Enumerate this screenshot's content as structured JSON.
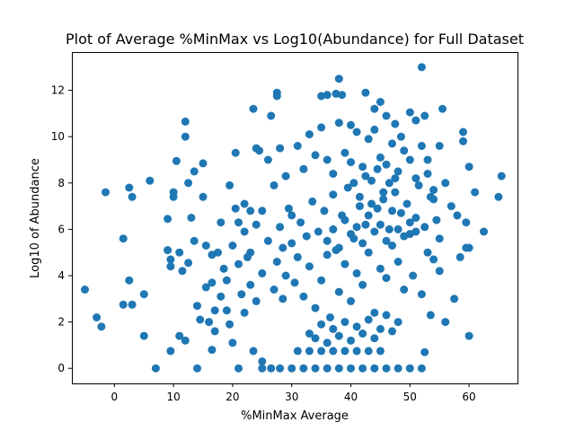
{
  "chart_data": {
    "type": "scatter",
    "title": "Plot of Average %MinMax vs Log10(Abundance) for Full Dataset",
    "xlabel": "%MinMax Average",
    "ylabel": "Log10 of Abundance",
    "xlim": [
      -7.2,
      68.2
    ],
    "ylim": [
      -0.65,
      13.65
    ],
    "xticks": [
      0,
      10,
      20,
      30,
      40,
      50,
      60
    ],
    "yticks": [
      0,
      2,
      4,
      6,
      8,
      10,
      12
    ],
    "grid": false,
    "color": "#1f77b4",
    "points": [
      [
        -5,
        3.4
      ],
      [
        -3,
        2.2
      ],
      [
        -2.2,
        1.8
      ],
      [
        -1.5,
        7.6
      ],
      [
        1.5,
        5.6
      ],
      [
        2.5,
        7.8
      ],
      [
        2.5,
        3.8
      ],
      [
        3,
        7.4
      ],
      [
        1.5,
        2.75
      ],
      [
        3,
        2.75
      ],
      [
        5,
        3.2
      ],
      [
        5,
        1.4
      ],
      [
        6,
        8.1
      ],
      [
        7,
        0.0
      ],
      [
        9,
        6.45
      ],
      [
        9,
        5.1
      ],
      [
        9.5,
        4.7
      ],
      [
        9.5,
        4.4
      ],
      [
        10,
        7.6
      ],
      [
        10,
        7.4
      ],
      [
        10.5,
        8.95
      ],
      [
        11,
        5.0
      ],
      [
        11,
        1.4
      ],
      [
        11.5,
        4.2
      ],
      [
        12,
        10.65
      ],
      [
        12,
        10.0
      ],
      [
        12.5,
        8.0
      ],
      [
        12.5,
        4.55
      ],
      [
        13,
        6.5
      ],
      [
        13.5,
        8.5
      ],
      [
        13.5,
        5.5
      ],
      [
        14,
        2.7
      ],
      [
        14,
        0.0
      ],
      [
        15,
        8.85
      ],
      [
        15,
        7.4
      ],
      [
        15.5,
        5.3
      ],
      [
        16,
        2.0
      ],
      [
        16.5,
        3.7
      ],
      [
        17,
        1.6
      ],
      [
        18,
        6.3
      ],
      [
        9.5,
        0.75
      ],
      [
        12,
        1.2
      ],
      [
        14.5,
        2.1
      ],
      [
        16.5,
        0.8
      ],
      [
        19,
        2.5
      ],
      [
        20,
        1.1
      ],
      [
        20.5,
        9.3
      ],
      [
        21,
        0.0
      ],
      [
        22,
        5.9
      ],
      [
        23,
        6.8
      ],
      [
        23.5,
        11.2
      ],
      [
        24,
        9.5
      ],
      [
        24.5,
        9.4
      ],
      [
        25,
        6.8
      ],
      [
        25,
        0.3
      ],
      [
        26,
        9.0
      ],
      [
        26.5,
        10.9
      ],
      [
        27,
        7.9
      ],
      [
        27.5,
        11.9
      ],
      [
        27.5,
        11.75
      ],
      [
        28,
        9.5
      ],
      [
        28.5,
        3.0
      ],
      [
        29,
        8.3
      ],
      [
        30,
        6.6
      ],
      [
        23.5,
        0.75
      ],
      [
        25,
        0.0
      ],
      [
        26.5,
        0.0
      ],
      [
        28,
        0.0
      ],
      [
        30,
        0.0
      ],
      [
        32,
        0.0
      ],
      [
        34,
        0.0
      ],
      [
        36,
        0.0
      ],
      [
        38,
        0.0
      ],
      [
        40,
        0.0
      ],
      [
        42,
        0.0
      ],
      [
        44,
        0.0
      ],
      [
        46,
        0.0
      ],
      [
        48,
        0.0
      ],
      [
        50,
        0.0
      ],
      [
        52,
        0.0
      ],
      [
        31,
        0.75
      ],
      [
        33,
        0.75
      ],
      [
        35,
        0.75
      ],
      [
        37,
        0.75
      ],
      [
        39,
        0.75
      ],
      [
        41,
        0.75
      ],
      [
        43,
        0.75
      ],
      [
        45,
        0.75
      ],
      [
        35,
        11.75
      ],
      [
        36,
        11.8
      ],
      [
        37.5,
        11.85
      ],
      [
        38,
        12.5
      ],
      [
        38.5,
        11.8
      ],
      [
        40,
        10.5
      ],
      [
        42.5,
        11.9
      ],
      [
        44,
        11.2
      ],
      [
        45,
        11.5
      ],
      [
        46,
        10.9
      ],
      [
        47.5,
        10.55
      ],
      [
        48.5,
        10.0
      ],
      [
        50,
        11.05
      ],
      [
        51,
        10.7
      ],
      [
        52,
        13.0
      ],
      [
        52.5,
        10.9
      ],
      [
        53,
        9.0
      ],
      [
        54,
        7.7
      ],
      [
        55,
        9.6
      ],
      [
        55.5,
        11.2
      ],
      [
        56,
        8.0
      ],
      [
        57,
        7.0
      ],
      [
        58,
        6.6
      ],
      [
        58.5,
        4.8
      ],
      [
        59,
        10.2
      ],
      [
        59,
        9.8
      ],
      [
        59.5,
        6.3
      ],
      [
        60,
        8.7
      ],
      [
        60,
        5.2
      ],
      [
        60,
        1.4
      ],
      [
        61,
        7.6
      ],
      [
        62.5,
        5.9
      ],
      [
        65,
        7.4
      ],
      [
        65.5,
        8.3
      ],
      [
        59.5,
        5.2
      ],
      [
        57.5,
        3.0
      ],
      [
        56,
        2.0
      ],
      [
        55,
        4.2
      ],
      [
        53.5,
        2.3
      ],
      [
        52.5,
        0.7
      ],
      [
        31,
        9.6
      ],
      [
        32,
        8.6
      ],
      [
        33,
        10.1
      ],
      [
        34,
        9.2
      ],
      [
        35,
        10.4
      ],
      [
        36,
        9.0
      ],
      [
        37,
        8.4
      ],
      [
        38,
        10.6
      ],
      [
        39,
        9.3
      ],
      [
        40,
        8.9
      ],
      [
        41,
        10.2
      ],
      [
        42,
        8.7
      ],
      [
        43,
        9.9
      ],
      [
        44,
        10.3
      ],
      [
        45,
        9.1
      ],
      [
        46,
        8.8
      ],
      [
        47,
        9.7
      ],
      [
        48,
        8.5
      ],
      [
        49,
        9.4
      ],
      [
        50,
        9.0
      ],
      [
        51,
        8.2
      ],
      [
        52,
        9.6
      ],
      [
        53,
        8.4
      ],
      [
        54,
        7.3
      ],
      [
        19.5,
        7.9
      ],
      [
        20.5,
        6.9
      ],
      [
        21,
        4.5
      ],
      [
        21.5,
        3.2
      ],
      [
        22,
        2.4
      ],
      [
        22.5,
        4.8
      ],
      [
        23,
        3.6
      ],
      [
        24,
        2.9
      ],
      [
        20,
        5.3
      ],
      [
        21,
        6.3
      ],
      [
        22,
        7.1
      ],
      [
        23,
        5.0
      ],
      [
        24,
        6.2
      ],
      [
        25,
        4.1
      ],
      [
        26,
        5.5
      ],
      [
        27,
        3.4
      ],
      [
        18,
        3.1
      ],
      [
        18.5,
        4.3
      ],
      [
        19,
        3.8
      ],
      [
        17.5,
        5.0
      ],
      [
        16.5,
        4.9
      ],
      [
        15.5,
        3.5
      ],
      [
        17,
        2.5
      ],
      [
        19.5,
        1.9
      ],
      [
        27.5,
        4.6
      ],
      [
        28,
        6.1
      ],
      [
        28.5,
        5.2
      ],
      [
        29,
        4.0
      ],
      [
        29.5,
        6.9
      ],
      [
        30,
        5.4
      ],
      [
        30.5,
        3.7
      ],
      [
        31,
        4.8
      ],
      [
        31.5,
        6.3
      ],
      [
        32,
        3.1
      ],
      [
        32.5,
        5.7
      ],
      [
        33,
        4.4
      ],
      [
        33.5,
        7.2
      ],
      [
        34,
        2.6
      ],
      [
        34.5,
        5.9
      ],
      [
        35,
        3.8
      ],
      [
        35.5,
        6.8
      ],
      [
        36,
        4.9
      ],
      [
        36.5,
        2.2
      ],
      [
        37,
        7.5
      ],
      [
        37.5,
        5.1
      ],
      [
        38,
        3.3
      ],
      [
        38.5,
        6.6
      ],
      [
        39,
        4.5
      ],
      [
        39.5,
        7.8
      ],
      [
        40,
        2.9
      ],
      [
        40.5,
        5.6
      ],
      [
        41,
        4.1
      ],
      [
        41.5,
        7.0
      ],
      [
        42,
        3.6
      ],
      [
        42.5,
        6.2
      ],
      [
        43,
        5.0
      ],
      [
        43.5,
        8.1
      ],
      [
        44,
        2.4
      ],
      [
        44.5,
        6.9
      ],
      [
        45,
        4.3
      ],
      [
        45.5,
        7.6
      ],
      [
        46,
        3.9
      ],
      [
        46.5,
        6.0
      ],
      [
        47,
        5.3
      ],
      [
        47.5,
        8.2
      ],
      [
        48,
        4.6
      ],
      [
        48.5,
        6.7
      ],
      [
        49,
        3.4
      ],
      [
        49.5,
        7.1
      ],
      [
        50,
        5.8
      ],
      [
        50.5,
        4.0
      ],
      [
        51,
        6.5
      ],
      [
        51.5,
        7.9
      ],
      [
        52,
        3.2
      ],
      [
        52.5,
        6.1
      ],
      [
        53,
        5.0
      ],
      [
        53.5,
        7.4
      ],
      [
        54,
        4.7
      ],
      [
        54.5,
        6.4
      ],
      [
        55,
        5.6
      ],
      [
        33,
        1.5
      ],
      [
        34,
        1.3
      ],
      [
        35,
        1.9
      ],
      [
        36,
        1.1
      ],
      [
        37,
        1.7
      ],
      [
        38,
        1.4
      ],
      [
        39,
        2.0
      ],
      [
        40,
        1.2
      ],
      [
        41,
        1.8
      ],
      [
        42,
        1.5
      ],
      [
        43,
        2.1
      ],
      [
        44,
        1.3
      ],
      [
        45,
        1.7
      ],
      [
        46,
        2.3
      ],
      [
        47,
        1.6
      ],
      [
        48,
        2.0
      ],
      [
        36,
        5.5
      ],
      [
        37,
        6.0
      ],
      [
        38,
        5.2
      ],
      [
        39,
        6.4
      ],
      [
        40,
        5.8
      ],
      [
        41,
        6.1
      ],
      [
        42,
        5.4
      ],
      [
        43,
        6.6
      ],
      [
        44,
        5.9
      ],
      [
        45,
        6.2
      ],
      [
        46,
        5.5
      ],
      [
        47,
        6.8
      ],
      [
        48,
        6.0
      ],
      [
        49,
        5.7
      ],
      [
        50,
        6.3
      ],
      [
        51,
        5.9
      ],
      [
        40.5,
        8.0
      ],
      [
        41.5,
        7.4
      ],
      [
        42.5,
        8.3
      ],
      [
        43.5,
        7.1
      ],
      [
        44.5,
        8.6
      ],
      [
        45.5,
        7.3
      ],
      [
        46.5,
        8.0
      ],
      [
        47.5,
        7.6
      ]
    ]
  }
}
